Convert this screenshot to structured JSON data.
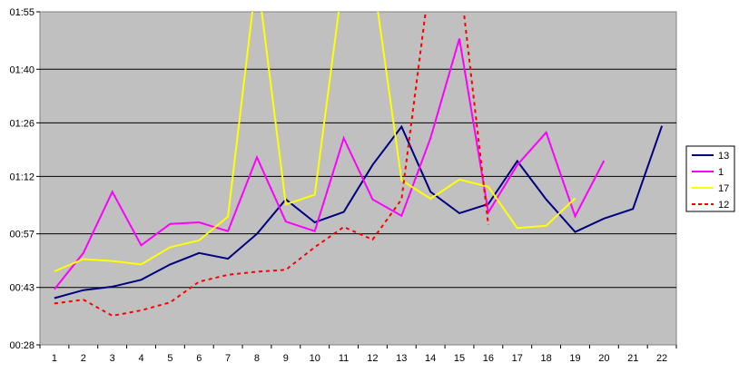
{
  "chart_data": {
    "type": "line",
    "title": "",
    "xlabel": "",
    "ylabel": "",
    "categories": [
      "1",
      "2",
      "3",
      "4",
      "5",
      "6",
      "7",
      "8",
      "9",
      "10",
      "11",
      "12",
      "13",
      "14",
      "15",
      "16",
      "17",
      "18",
      "19",
      "20",
      "21",
      "22"
    ],
    "y_ticks": [
      "00:28",
      "00:43",
      "00:57",
      "01:12",
      "01:26",
      "01:40",
      "01:55"
    ],
    "y_tick_seconds": [
      28,
      43,
      57,
      72,
      86,
      100,
      115
    ],
    "ylim_seconds": [
      28,
      115
    ],
    "grid": "horizontal",
    "plot_background": "#c0c0c0",
    "legend_position": "right",
    "series": [
      {
        "name": "13",
        "color": "#000080",
        "dash": "solid",
        "values_seconds": [
          40.2,
          42.3,
          43.2,
          45,
          49,
          52,
          50.5,
          57,
          66,
          60,
          62.7,
          75,
          85,
          68,
          62.4,
          64.8,
          76,
          66,
          57.5,
          61,
          63.5,
          85.2
        ]
      },
      {
        "name": "1",
        "color": "#ff00ff",
        "dash": "solid",
        "values_seconds": [
          42.5,
          52,
          68,
          54,
          59.6,
          60,
          57.7,
          77,
          60.2,
          57.7,
          82,
          66,
          61.7,
          82,
          108,
          62.6,
          75,
          83.5,
          61.6,
          76.1
        ]
      },
      {
        "name": "17",
        "color": "#ffff00",
        "dash": "solid",
        "values_seconds": [
          47.2,
          50.4,
          49.9,
          49,
          53.5,
          55.3,
          61.5,
          125,
          64.7,
          67.2,
          125,
          125,
          71,
          66.2,
          71.2,
          69.3,
          58.5,
          59.1,
          66.3
        ]
      },
      {
        "name": "12",
        "color": "#ff0000",
        "dash": "dashed",
        "values_seconds": [
          38.8,
          39.8,
          35.6,
          37,
          39.1,
          44.5,
          46.3,
          47.1,
          47.6,
          53.5,
          58.8,
          55.5,
          66,
          125,
          125,
          59.3
        ]
      }
    ]
  }
}
